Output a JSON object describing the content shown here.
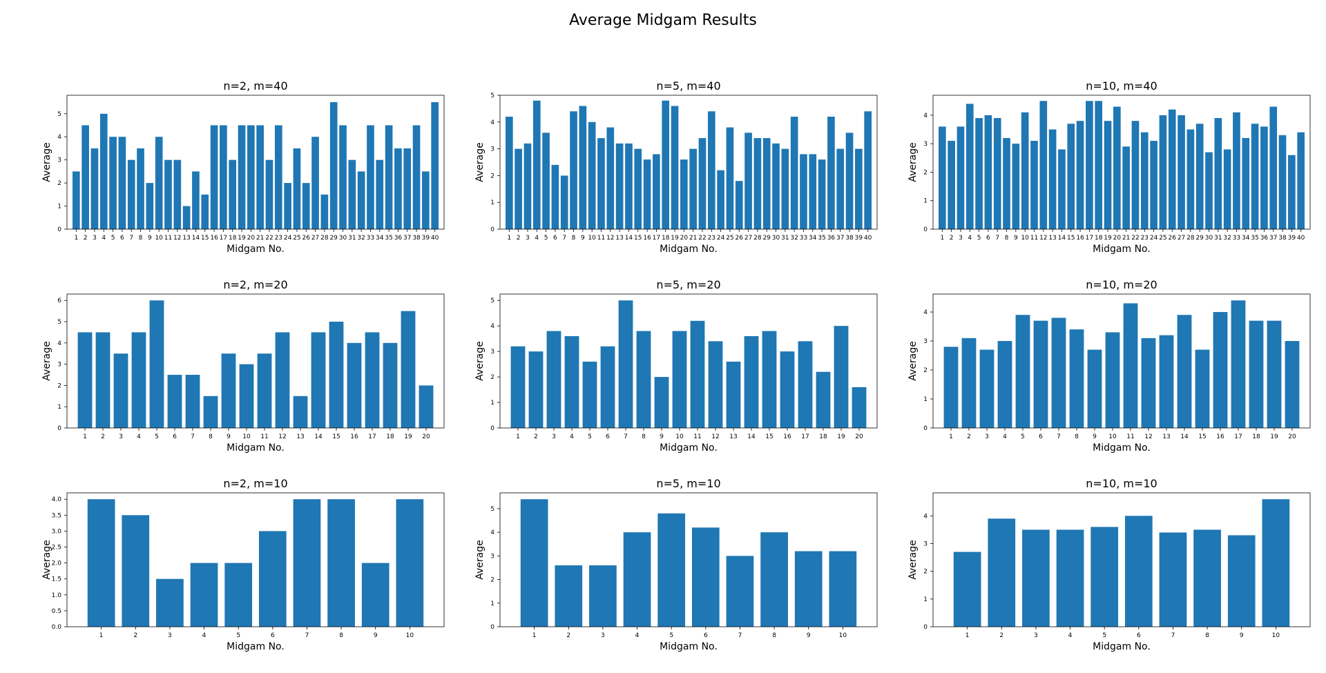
{
  "figure": {
    "title": "Average Midgam Results"
  },
  "style": {
    "bar_color": "#1f77b4"
  },
  "chart_data": [
    {
      "type": "bar",
      "title": "n=2, m=40",
      "xlabel": "Midgam No.",
      "ylabel": "Average",
      "ylim": [
        0,
        5.8
      ],
      "yticks": [
        0,
        1,
        2,
        3,
        4,
        5
      ],
      "categories": [
        "1",
        "2",
        "3",
        "4",
        "5",
        "6",
        "7",
        "8",
        "9",
        "10",
        "11",
        "12",
        "13",
        "14",
        "15",
        "16",
        "17",
        "18",
        "19",
        "20",
        "21",
        "22",
        "23",
        "24",
        "25",
        "26",
        "27",
        "28",
        "29",
        "30",
        "31",
        "32",
        "33",
        "34",
        "35",
        "36",
        "37",
        "38",
        "39",
        "40"
      ],
      "values": [
        2.5,
        4.5,
        3.5,
        5,
        4,
        4,
        3,
        3.5,
        2,
        4,
        3,
        3,
        1,
        2.5,
        1.5,
        4.5,
        4.5,
        3,
        4.5,
        4.5,
        4.5,
        3,
        4.5,
        2,
        3.5,
        2,
        4,
        1.5,
        5.5,
        4.5,
        3,
        2.5,
        4.5,
        3,
        4.5,
        3.5,
        3.5,
        4.5,
        2.5,
        5.5
      ]
    },
    {
      "type": "bar",
      "title": "n=5, m=40",
      "xlabel": "Midgam No.",
      "ylabel": "Average",
      "ylim": [
        0,
        5
      ],
      "yticks": [
        0,
        1,
        2,
        3,
        4,
        5
      ],
      "categories": [
        "1",
        "2",
        "3",
        "4",
        "5",
        "6",
        "7",
        "8",
        "9",
        "10",
        "11",
        "12",
        "13",
        "14",
        "15",
        "16",
        "17",
        "18",
        "19",
        "20",
        "21",
        "22",
        "23",
        "24",
        "25",
        "26",
        "27",
        "28",
        "29",
        "30",
        "31",
        "32",
        "33",
        "34",
        "35",
        "36",
        "37",
        "38",
        "39",
        "40"
      ],
      "values": [
        4.2,
        3,
        3.2,
        4.8,
        3.6,
        2.4,
        2,
        4.4,
        4.6,
        4,
        3.4,
        3.8,
        3.2,
        3.2,
        3,
        2.6,
        2.8,
        4.8,
        4.6,
        2.6,
        3,
        3.4,
        4.4,
        2.2,
        3.8,
        1.8,
        3.6,
        3.4,
        3.4,
        3.2,
        3,
        4.2,
        2.8,
        2.8,
        2.6,
        4.2,
        3,
        3.6,
        3,
        4.4
      ]
    },
    {
      "type": "bar",
      "title": "n=10, m=40",
      "xlabel": "Midgam No.",
      "ylabel": "Average",
      "ylim": [
        0,
        4.7
      ],
      "yticks": [
        0,
        1,
        2,
        3,
        4
      ],
      "categories": [
        "1",
        "2",
        "3",
        "4",
        "5",
        "6",
        "7",
        "8",
        "9",
        "10",
        "11",
        "12",
        "13",
        "14",
        "15",
        "16",
        "17",
        "18",
        "19",
        "20",
        "21",
        "22",
        "23",
        "24",
        "25",
        "26",
        "27",
        "28",
        "29",
        "30",
        "31",
        "32",
        "33",
        "34",
        "35",
        "36",
        "37",
        "38",
        "39",
        "40"
      ],
      "values": [
        3.6,
        3.1,
        3.6,
        4.4,
        3.9,
        4,
        3.9,
        3.2,
        3,
        4.1,
        3.1,
        4.5,
        3.5,
        2.8,
        3.7,
        3.8,
        4.5,
        4.5,
        3.8,
        4.3,
        2.9,
        3.8,
        3.4,
        3.1,
        4,
        4.2,
        4,
        3.5,
        3.7,
        2.7,
        3.9,
        2.8,
        4.1,
        3.2,
        3.7,
        3.6,
        4.3,
        3.3,
        2.6,
        3.4
      ]
    },
    {
      "type": "bar",
      "title": "n=2, m=20",
      "xlabel": "Midgam No.",
      "ylabel": "Average",
      "ylim": [
        0,
        6.3
      ],
      "yticks": [
        0,
        1,
        2,
        3,
        4,
        5,
        6
      ],
      "categories": [
        "1",
        "2",
        "3",
        "4",
        "5",
        "6",
        "7",
        "8",
        "9",
        "10",
        "11",
        "12",
        "13",
        "14",
        "15",
        "16",
        "17",
        "18",
        "19",
        "20"
      ],
      "values": [
        4.5,
        4.5,
        3.5,
        4.5,
        6,
        2.5,
        2.5,
        1.5,
        3.5,
        3,
        3.5,
        4.5,
        1.5,
        4.5,
        5,
        4,
        4.5,
        4,
        5.5,
        2
      ]
    },
    {
      "type": "bar",
      "title": "n=5, m=20",
      "xlabel": "Midgam No.",
      "ylabel": "Average",
      "ylim": [
        0,
        5.25
      ],
      "yticks": [
        0,
        1,
        2,
        3,
        4,
        5
      ],
      "categories": [
        "1",
        "2",
        "3",
        "4",
        "5",
        "6",
        "7",
        "8",
        "9",
        "10",
        "11",
        "12",
        "13",
        "14",
        "15",
        "16",
        "17",
        "18",
        "19",
        "20"
      ],
      "values": [
        3.2,
        3,
        3.8,
        3.6,
        2.6,
        3.2,
        5,
        3.8,
        2,
        3.8,
        4.2,
        3.4,
        2.6,
        3.6,
        3.8,
        3,
        3.4,
        2.2,
        4,
        1.6
      ]
    },
    {
      "type": "bar",
      "title": "n=10, m=20",
      "xlabel": "Midgam No.",
      "ylabel": "Average",
      "ylim": [
        0,
        4.62
      ],
      "yticks": [
        0,
        1,
        2,
        3,
        4
      ],
      "categories": [
        "1",
        "2",
        "3",
        "4",
        "5",
        "6",
        "7",
        "8",
        "9",
        "10",
        "11",
        "12",
        "13",
        "14",
        "15",
        "16",
        "17",
        "18",
        "19",
        "20"
      ],
      "values": [
        2.8,
        3.1,
        2.7,
        3,
        3.9,
        3.7,
        3.8,
        3.4,
        2.7,
        3.3,
        4.3,
        3.1,
        3.2,
        3.9,
        2.7,
        4,
        4.4,
        3.7,
        3.7,
        3
      ]
    },
    {
      "type": "bar",
      "title": "n=2, m=10",
      "xlabel": "Midgam No.",
      "ylabel": "Average",
      "ylim": [
        0,
        4.2
      ],
      "yticks": [
        0,
        0.5,
        1,
        1.5,
        2,
        2.5,
        3,
        3.5,
        4
      ],
      "ytick_labels": [
        "0.0",
        "0.5",
        "1.0",
        "1.5",
        "2.0",
        "2.5",
        "3.0",
        "3.5",
        "4.0"
      ],
      "categories": [
        "1",
        "2",
        "3",
        "4",
        "5",
        "6",
        "7",
        "8",
        "9",
        "10"
      ],
      "values": [
        4,
        3.5,
        1.5,
        2,
        2,
        3,
        4,
        4,
        2,
        4
      ]
    },
    {
      "type": "bar",
      "title": "n=5, m=10",
      "xlabel": "Midgam No.",
      "ylabel": "Average",
      "ylim": [
        0,
        5.67
      ],
      "yticks": [
        0,
        1,
        2,
        3,
        4,
        5
      ],
      "categories": [
        "1",
        "2",
        "3",
        "4",
        "5",
        "6",
        "7",
        "8",
        "9",
        "10"
      ],
      "values": [
        5.4,
        2.6,
        2.6,
        4,
        4.8,
        4.2,
        3,
        4,
        3.2,
        3.2
      ]
    },
    {
      "type": "bar",
      "title": "n=10, m=10",
      "xlabel": "Midgam No.",
      "ylabel": "Average",
      "ylim": [
        0,
        4.83
      ],
      "yticks": [
        0,
        1,
        2,
        3,
        4
      ],
      "categories": [
        "1",
        "2",
        "3",
        "4",
        "5",
        "6",
        "7",
        "8",
        "9",
        "10"
      ],
      "values": [
        2.7,
        3.9,
        3.5,
        3.5,
        3.6,
        4,
        3.4,
        3.5,
        3.3,
        4.6
      ]
    }
  ]
}
